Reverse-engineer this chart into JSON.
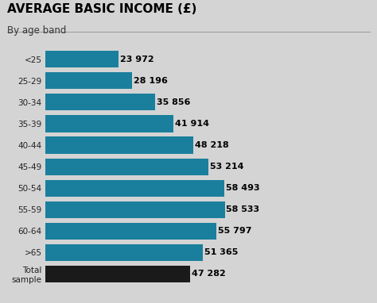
{
  "title": "AVERAGE BASIC INCOME (£)",
  "subtitle": "By age band",
  "categories": [
    "<25",
    "25-29",
    "30-34",
    "35-39",
    "40-44",
    "45-49",
    "50-54",
    "55-59",
    "60-64",
    ">65",
    "Total\nsample"
  ],
  "values": [
    23972,
    28196,
    35856,
    41914,
    48218,
    53214,
    58493,
    58533,
    55797,
    51365,
    47282
  ],
  "labels": [
    "23 972",
    "28 196",
    "35 856",
    "41 914",
    "48 218",
    "53 214",
    "58 493",
    "58 533",
    "55 797",
    "51 365",
    "47 282"
  ],
  "bar_colors": [
    "#1a7f9c",
    "#1a7f9c",
    "#1a7f9c",
    "#1a7f9c",
    "#1a7f9c",
    "#1a7f9c",
    "#1a7f9c",
    "#1a7f9c",
    "#1a7f9c",
    "#1a7f9c",
    "#1a1a1a"
  ],
  "background_color": "#d4d4d4",
  "title_color": "#000000",
  "label_color": "#000000",
  "xlim": [
    0,
    75000
  ],
  "title_fontsize": 11,
  "subtitle_fontsize": 8.5,
  "bar_label_fontsize": 8,
  "tick_label_fontsize": 7.5
}
